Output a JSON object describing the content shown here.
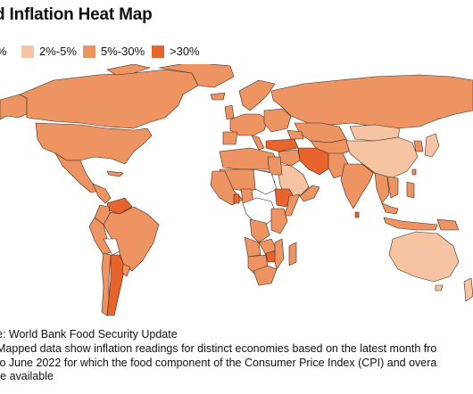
{
  "title": "d Inflation Heat Map",
  "legend": [
    {
      "label": "%",
      "color": "#ffffff"
    },
    {
      "label": "2%-5%",
      "color": "#f6c4a2"
    },
    {
      "label": "5%-30%",
      "color": "#ee9462"
    },
    {
      "label": ">30%",
      "color": "#e8642d"
    }
  ],
  "colors": {
    "no_data": "#ffffff",
    "low": "#f6c4a2",
    "mid": "#ee9462",
    "high": "#e8642d",
    "border": "#3a2a20"
  },
  "source": "e: World Bank Food Security Update",
  "note_lines": [
    "Mapped data show inflation readings for distinct economies based on the latest month fro",
    " to June 2022 for which the food component of the Consumer Price Index (CPI) and overa",
    "re available"
  ]
}
